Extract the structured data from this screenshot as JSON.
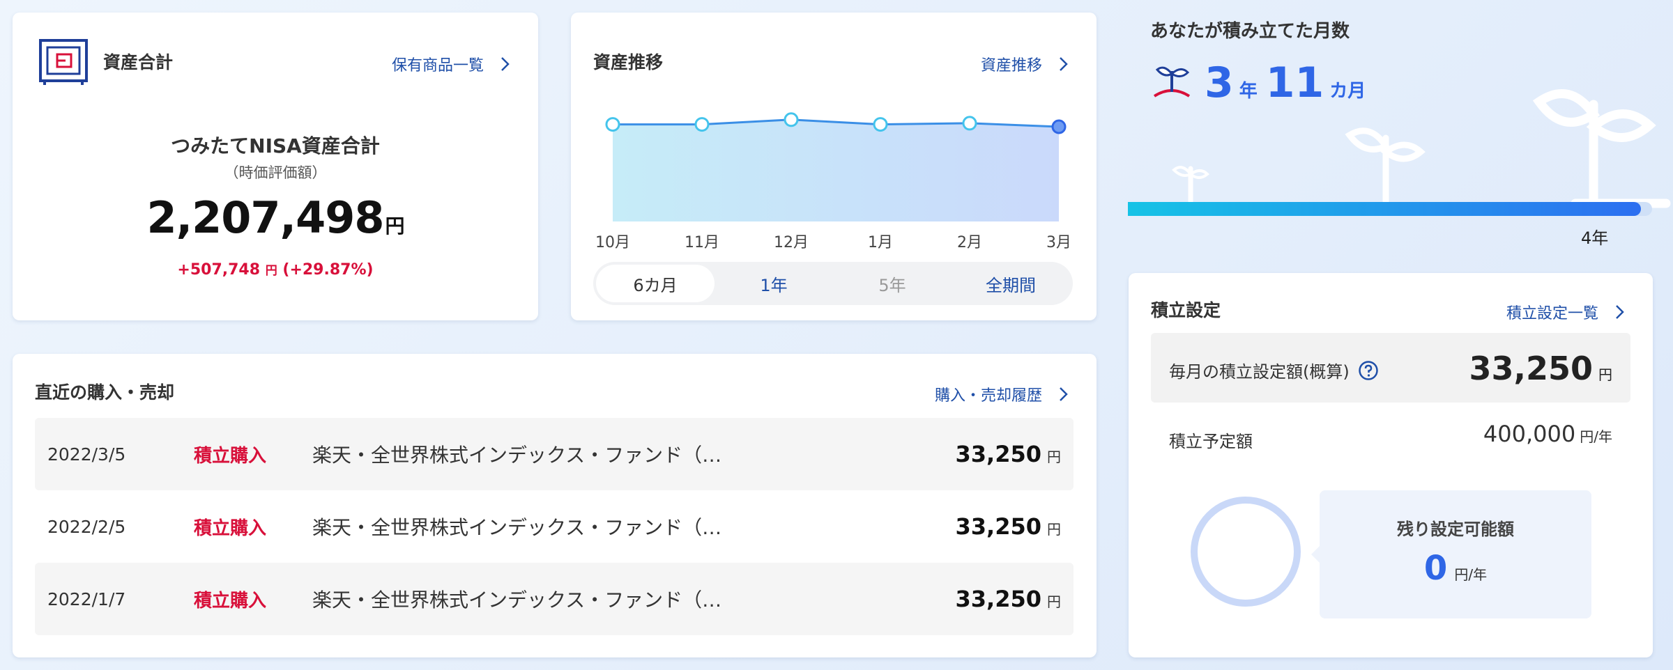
{
  "asset_total": {
    "title": "資産合計",
    "link_label": "保有商品一覧",
    "nisa_label": "つみたてNISA資産合計",
    "nisa_sub": "（時価評価額）",
    "value": "2,207,498",
    "value_unit": "円",
    "gain": "+507,748",
    "gain_unit": "円",
    "gain_pct": "(+29.87%)",
    "icon": "safe-icon"
  },
  "asset_trend": {
    "title": "資産推移",
    "link_label": "資産推移",
    "periods": [
      {
        "label": "6カ月",
        "state": "active"
      },
      {
        "label": "1年",
        "state": "normal"
      },
      {
        "label": "5年",
        "state": "disabled"
      },
      {
        "label": "全期間",
        "state": "normal"
      }
    ]
  },
  "chart_data": {
    "type": "area",
    "categories": [
      "10月",
      "11月",
      "12月",
      "1月",
      "2月",
      "3月"
    ],
    "values": [
      0.82,
      0.82,
      0.86,
      0.82,
      0.83,
      0.8
    ],
    "title": "",
    "xlabel": "",
    "ylabel": "",
    "ylim": [
      0,
      1
    ],
    "grid": false
  },
  "recent_trades": {
    "title": "直近の購入・売却",
    "link_label": "購入・売却履歴",
    "rows": [
      {
        "date": "2022/3/5",
        "type": "積立購入",
        "fund": "楽天・全世界株式インデックス・ファンド（…",
        "amount": "33,250",
        "unit": "円"
      },
      {
        "date": "2022/2/5",
        "type": "積立購入",
        "fund": "楽天・全世界株式インデックス・ファンド（…",
        "amount": "33,250",
        "unit": "円"
      },
      {
        "date": "2022/1/7",
        "type": "積立購入",
        "fund": "楽天・全世界株式インデックス・ファンド（…",
        "amount": "33,250",
        "unit": "円"
      }
    ]
  },
  "months": {
    "title": "あなたが積み立てた月数",
    "years": "3",
    "years_unit": "年",
    "months": "11",
    "months_unit": "カ月",
    "progress_fraction": 0.979,
    "progress_end_label": "4年",
    "icon": "sprout-icon"
  },
  "settings": {
    "title": "積立設定",
    "link_label": "積立設定一覧",
    "monthly_label": "毎月の積立設定額(概算)",
    "monthly_amount": "33,250",
    "monthly_unit": "円",
    "plan_label": "積立予定額",
    "plan_amount": "400,000",
    "plan_unit": "円/年",
    "remain_label": "残り設定可能額",
    "remain_value": "0",
    "remain_unit": "円/年",
    "remain_fraction": 0
  },
  "colors": {
    "accent_blue": "#2f66e6",
    "link_blue": "#1f4fa8",
    "gain_red": "#d8103a",
    "chart_line": "#3b8fe6"
  }
}
